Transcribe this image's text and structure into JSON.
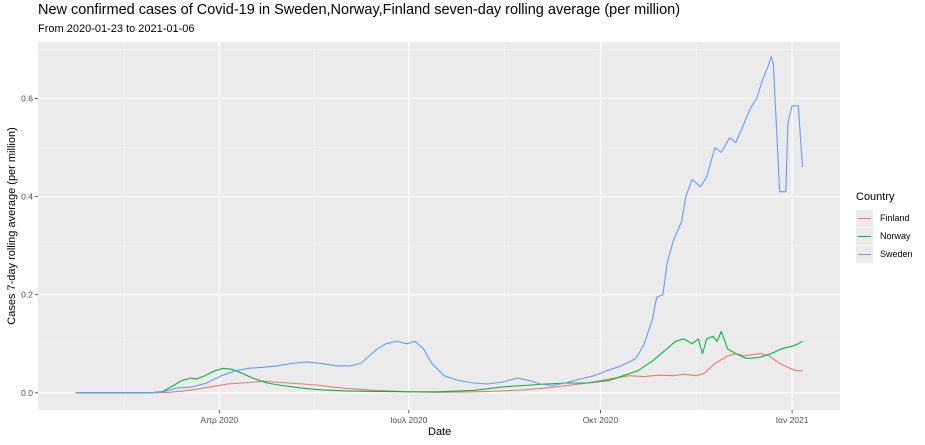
{
  "chart_data": {
    "type": "line",
    "title": "New confirmed cases of Covid-19 in Sweden,Norway,Finland seven-day rolling average (per million)",
    "subtitle": "From 2020-01-23 to 2021-01-06",
    "xlabel": "Date",
    "ylabel": "Cases 7-day rolling average (per million)",
    "x_ticks": [
      {
        "date": "2020-04-01",
        "label": "Απρ 2020"
      },
      {
        "date": "2020-07-01",
        "label": "Ιουλ 2020"
      },
      {
        "date": "2020-10-01",
        "label": "Οκτ 2020"
      },
      {
        "date": "2021-01-01",
        "label": "Ιαν 2021"
      }
    ],
    "y_ticks": [
      0.0,
      0.2,
      0.4,
      0.6
    ],
    "y_tick_labels": [
      "0.0",
      "0.2",
      "0.4",
      "0.6"
    ],
    "xlim": [
      "2020-01-05",
      "2021-01-24"
    ],
    "ylim": [
      -0.035,
      0.715
    ],
    "grid": true,
    "legend_title": "Country",
    "legend_position": "right",
    "series": [
      {
        "name": "Finland",
        "color": "#F8766D",
        "points": [
          [
            "2020-01-23",
            0.0
          ],
          [
            "2020-02-28",
            0.0
          ],
          [
            "2020-03-08",
            0.001
          ],
          [
            "2020-03-15",
            0.004
          ],
          [
            "2020-03-22",
            0.008
          ],
          [
            "2020-03-29",
            0.013
          ],
          [
            "2020-04-05",
            0.018
          ],
          [
            "2020-04-12",
            0.02
          ],
          [
            "2020-04-18",
            0.022
          ],
          [
            "2020-04-22",
            0.024
          ],
          [
            "2020-04-27",
            0.022
          ],
          [
            "2020-05-04",
            0.02
          ],
          [
            "2020-05-11",
            0.018
          ],
          [
            "2020-05-18",
            0.016
          ],
          [
            "2020-05-25",
            0.012
          ],
          [
            "2020-06-01",
            0.009
          ],
          [
            "2020-06-08",
            0.007
          ],
          [
            "2020-06-15",
            0.005
          ],
          [
            "2020-06-22",
            0.004
          ],
          [
            "2020-07-01",
            0.002
          ],
          [
            "2020-07-15",
            0.001
          ],
          [
            "2020-08-01",
            0.002
          ],
          [
            "2020-08-15",
            0.004
          ],
          [
            "2020-08-25",
            0.006
          ],
          [
            "2020-09-05",
            0.01
          ],
          [
            "2020-09-15",
            0.015
          ],
          [
            "2020-09-25",
            0.02
          ],
          [
            "2020-10-01",
            0.025
          ],
          [
            "2020-10-08",
            0.03
          ],
          [
            "2020-10-15",
            0.035
          ],
          [
            "2020-10-22",
            0.033
          ],
          [
            "2020-10-29",
            0.036
          ],
          [
            "2020-11-05",
            0.035
          ],
          [
            "2020-11-10",
            0.038
          ],
          [
            "2020-11-16",
            0.035
          ],
          [
            "2020-11-20",
            0.04
          ],
          [
            "2020-11-25",
            0.06
          ],
          [
            "2020-12-01",
            0.075
          ],
          [
            "2020-12-05",
            0.08
          ],
          [
            "2020-12-09",
            0.075
          ],
          [
            "2020-12-13",
            0.078
          ],
          [
            "2020-12-17",
            0.08
          ],
          [
            "2020-12-21",
            0.075
          ],
          [
            "2020-12-26",
            0.06
          ],
          [
            "2020-12-31",
            0.05
          ],
          [
            "2021-01-03",
            0.045
          ],
          [
            "2021-01-06",
            0.045
          ]
        ]
      },
      {
        "name": "Norway",
        "color": "#00BA38",
        "points": [
          [
            "2020-01-23",
            0.0
          ],
          [
            "2020-02-28",
            0.0
          ],
          [
            "2020-03-05",
            0.003
          ],
          [
            "2020-03-10",
            0.015
          ],
          [
            "2020-03-14",
            0.025
          ],
          [
            "2020-03-18",
            0.03
          ],
          [
            "2020-03-21",
            0.028
          ],
          [
            "2020-03-25",
            0.035
          ],
          [
            "2020-03-30",
            0.045
          ],
          [
            "2020-04-03",
            0.05
          ],
          [
            "2020-04-07",
            0.048
          ],
          [
            "2020-04-12",
            0.04
          ],
          [
            "2020-04-17",
            0.03
          ],
          [
            "2020-04-24",
            0.02
          ],
          [
            "2020-05-01",
            0.015
          ],
          [
            "2020-05-10",
            0.01
          ],
          [
            "2020-05-20",
            0.006
          ],
          [
            "2020-06-01",
            0.004
          ],
          [
            "2020-06-15",
            0.003
          ],
          [
            "2020-07-01",
            0.002
          ],
          [
            "2020-07-15",
            0.002
          ],
          [
            "2020-08-01",
            0.005
          ],
          [
            "2020-08-15",
            0.012
          ],
          [
            "2020-08-25",
            0.015
          ],
          [
            "2020-09-05",
            0.018
          ],
          [
            "2020-09-15",
            0.02
          ],
          [
            "2020-09-25",
            0.02
          ],
          [
            "2020-10-05",
            0.025
          ],
          [
            "2020-10-12",
            0.035
          ],
          [
            "2020-10-19",
            0.045
          ],
          [
            "2020-10-26",
            0.065
          ],
          [
            "2020-11-02",
            0.09
          ],
          [
            "2020-11-06",
            0.105
          ],
          [
            "2020-11-10",
            0.11
          ],
          [
            "2020-11-14",
            0.1
          ],
          [
            "2020-11-17",
            0.11
          ],
          [
            "2020-11-19",
            0.08
          ],
          [
            "2020-11-21",
            0.11
          ],
          [
            "2020-11-24",
            0.115
          ],
          [
            "2020-11-26",
            0.105
          ],
          [
            "2020-11-28",
            0.125
          ],
          [
            "2020-12-01",
            0.09
          ],
          [
            "2020-12-05",
            0.08
          ],
          [
            "2020-12-10",
            0.07
          ],
          [
            "2020-12-16",
            0.072
          ],
          [
            "2020-12-22",
            0.08
          ],
          [
            "2020-12-27",
            0.09
          ],
          [
            "2021-01-01",
            0.095
          ],
          [
            "2021-01-04",
            0.1
          ],
          [
            "2021-01-06",
            0.105
          ]
        ]
      },
      {
        "name": "Sweden",
        "color": "#619CFF",
        "points": [
          [
            "2020-01-23",
            0.0
          ],
          [
            "2020-02-28",
            0.0
          ],
          [
            "2020-03-05",
            0.002
          ],
          [
            "2020-03-12",
            0.01
          ],
          [
            "2020-03-19",
            0.012
          ],
          [
            "2020-03-26",
            0.02
          ],
          [
            "2020-04-02",
            0.035
          ],
          [
            "2020-04-09",
            0.045
          ],
          [
            "2020-04-15",
            0.05
          ],
          [
            "2020-04-22",
            0.052
          ],
          [
            "2020-04-29",
            0.055
          ],
          [
            "2020-05-06",
            0.06
          ],
          [
            "2020-05-13",
            0.063
          ],
          [
            "2020-05-20",
            0.06
          ],
          [
            "2020-05-27",
            0.055
          ],
          [
            "2020-06-03",
            0.055
          ],
          [
            "2020-06-08",
            0.06
          ],
          [
            "2020-06-12",
            0.075
          ],
          [
            "2020-06-16",
            0.09
          ],
          [
            "2020-06-20",
            0.1
          ],
          [
            "2020-06-25",
            0.105
          ],
          [
            "2020-06-30",
            0.1
          ],
          [
            "2020-07-04",
            0.105
          ],
          [
            "2020-07-08",
            0.09
          ],
          [
            "2020-07-12",
            0.06
          ],
          [
            "2020-07-18",
            0.035
          ],
          [
            "2020-07-25",
            0.025
          ],
          [
            "2020-08-01",
            0.02
          ],
          [
            "2020-08-08",
            0.018
          ],
          [
            "2020-08-15",
            0.022
          ],
          [
            "2020-08-22",
            0.03
          ],
          [
            "2020-08-28",
            0.025
          ],
          [
            "2020-09-02",
            0.018
          ],
          [
            "2020-09-08",
            0.015
          ],
          [
            "2020-09-14",
            0.02
          ],
          [
            "2020-09-21",
            0.028
          ],
          [
            "2020-09-28",
            0.035
          ],
          [
            "2020-10-04",
            0.045
          ],
          [
            "2020-10-11",
            0.055
          ],
          [
            "2020-10-18",
            0.07
          ],
          [
            "2020-10-22",
            0.1
          ],
          [
            "2020-10-26",
            0.15
          ],
          [
            "2020-10-28",
            0.195
          ],
          [
            "2020-10-31",
            0.2
          ],
          [
            "2020-11-02",
            0.265
          ],
          [
            "2020-11-05",
            0.31
          ],
          [
            "2020-11-09",
            0.35
          ],
          [
            "2020-11-11",
            0.4
          ],
          [
            "2020-11-14",
            0.435
          ],
          [
            "2020-11-18",
            0.42
          ],
          [
            "2020-11-21",
            0.44
          ],
          [
            "2020-11-25",
            0.5
          ],
          [
            "2020-11-28",
            0.49
          ],
          [
            "2020-12-02",
            0.52
          ],
          [
            "2020-12-05",
            0.51
          ],
          [
            "2020-12-09",
            0.55
          ],
          [
            "2020-12-12",
            0.58
          ],
          [
            "2020-12-15",
            0.6
          ],
          [
            "2020-12-18",
            0.64
          ],
          [
            "2020-12-20",
            0.66
          ],
          [
            "2020-12-22",
            0.685
          ],
          [
            "2020-12-23",
            0.67
          ],
          [
            "2020-12-25",
            0.5
          ],
          [
            "2020-12-26",
            0.41
          ],
          [
            "2020-12-29",
            0.41
          ],
          [
            "2020-12-30",
            0.55
          ],
          [
            "2021-01-01",
            0.585
          ],
          [
            "2021-01-04",
            0.585
          ],
          [
            "2021-01-06",
            0.46
          ]
        ]
      }
    ]
  }
}
